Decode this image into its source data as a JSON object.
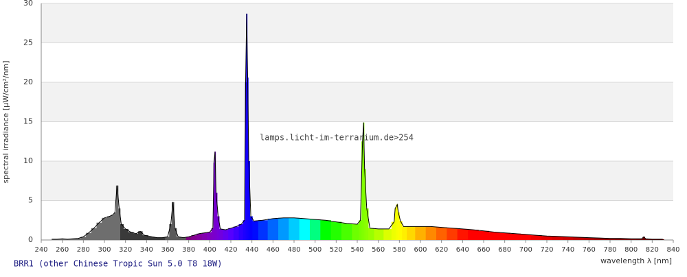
{
  "chart_data": {
    "type": "spectrum",
    "ylabel": "spectral irradiance [µW/cm²/nm]",
    "xlabel": "wavelength λ [nm]",
    "watermark": "lamps.licht-im-terrarium.de>254",
    "caption": "BRR1 (other Chinese Tropic Sun 5.0 T8 18W)",
    "xlim": [
      240,
      840
    ],
    "ylim": [
      0,
      30
    ],
    "xticks": [
      240,
      260,
      280,
      300,
      320,
      340,
      360,
      380,
      400,
      420,
      440,
      460,
      480,
      500,
      520,
      540,
      560,
      580,
      600,
      620,
      640,
      660,
      680,
      700,
      720,
      740,
      760,
      780,
      800,
      820,
      840
    ],
    "yticks": [
      0,
      5,
      10,
      15,
      20,
      25,
      30
    ],
    "grid": true,
    "x": [
      250,
      255,
      260,
      265,
      270,
      275,
      280,
      285,
      290,
      295,
      300,
      305,
      308,
      310,
      312,
      314,
      316,
      320,
      325,
      330,
      334,
      338,
      345,
      350,
      355,
      360,
      363,
      365,
      367,
      370,
      375,
      380,
      385,
      390,
      395,
      400,
      403,
      404,
      405,
      406,
      408,
      410,
      415,
      420,
      425,
      430,
      433,
      434,
      435,
      436,
      437,
      439,
      442,
      450,
      460,
      470,
      480,
      490,
      500,
      510,
      520,
      530,
      540,
      543,
      545,
      546,
      547,
      549,
      552,
      560,
      570,
      575,
      576,
      578,
      579,
      581,
      584,
      590,
      600,
      610,
      620,
      630,
      640,
      650,
      660,
      670,
      680,
      690,
      700,
      710,
      720,
      730,
      740,
      750,
      760,
      770,
      780,
      790,
      800,
      810,
      812,
      814,
      820,
      830
    ],
    "values": [
      0.1,
      0.1,
      0.15,
      0.1,
      0.15,
      0.2,
      0.4,
      0.9,
      1.5,
      2.2,
      2.8,
      3.0,
      3.2,
      3.5,
      6.9,
      4.0,
      2.0,
      1.4,
      1.0,
      0.8,
      1.1,
      0.6,
      0.4,
      0.3,
      0.3,
      0.4,
      2.0,
      4.8,
      1.5,
      0.4,
      0.3,
      0.4,
      0.6,
      0.8,
      0.9,
      1.0,
      1.5,
      9.8,
      11.2,
      6.0,
      3.0,
      1.4,
      1.3,
      1.5,
      1.7,
      2.0,
      2.5,
      20.0,
      28.7,
      20.6,
      10.0,
      3.0,
      2.4,
      2.5,
      2.7,
      2.8,
      2.8,
      2.7,
      2.6,
      2.5,
      2.3,
      2.1,
      2.0,
      2.5,
      12.5,
      14.9,
      9.0,
      4.0,
      1.5,
      1.4,
      1.4,
      2.3,
      4.0,
      4.5,
      3.5,
      2.4,
      1.7,
      1.7,
      1.7,
      1.7,
      1.6,
      1.5,
      1.4,
      1.3,
      1.15,
      1.0,
      0.9,
      0.8,
      0.7,
      0.6,
      0.5,
      0.45,
      0.4,
      0.35,
      0.3,
      0.25,
      0.2,
      0.2,
      0.15,
      0.15,
      0.4,
      0.15,
      0.1,
      0.1
    ]
  }
}
